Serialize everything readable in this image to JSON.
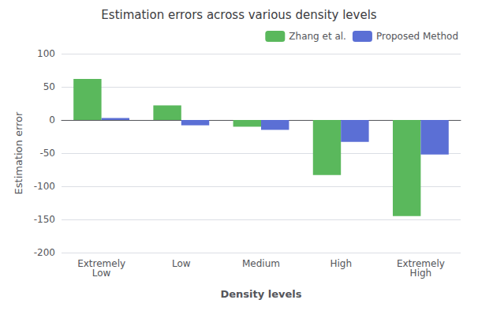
{
  "chart_data": {
    "type": "bar",
    "title": "Estimation errors across various density levels",
    "xlabel": "Density levels",
    "ylabel": "Estimation error",
    "categories": [
      "Extremely\nLow",
      "Low",
      "Medium",
      "High",
      "Extremely\nHigh"
    ],
    "series": [
      {
        "name": "Zhang et al.",
        "color": "#5ab85c",
        "values": [
          62,
          22,
          -10,
          -83,
          -145
        ]
      },
      {
        "name": "Proposed Method",
        "color": "#5b6fd5",
        "values": [
          3,
          -8,
          -15,
          -33,
          -52
        ]
      }
    ],
    "ylim": [
      -200,
      100
    ],
    "yticks": [
      -200,
      -150,
      -100,
      -50,
      0,
      50,
      100
    ],
    "grid": true,
    "legend": "upper right"
  }
}
